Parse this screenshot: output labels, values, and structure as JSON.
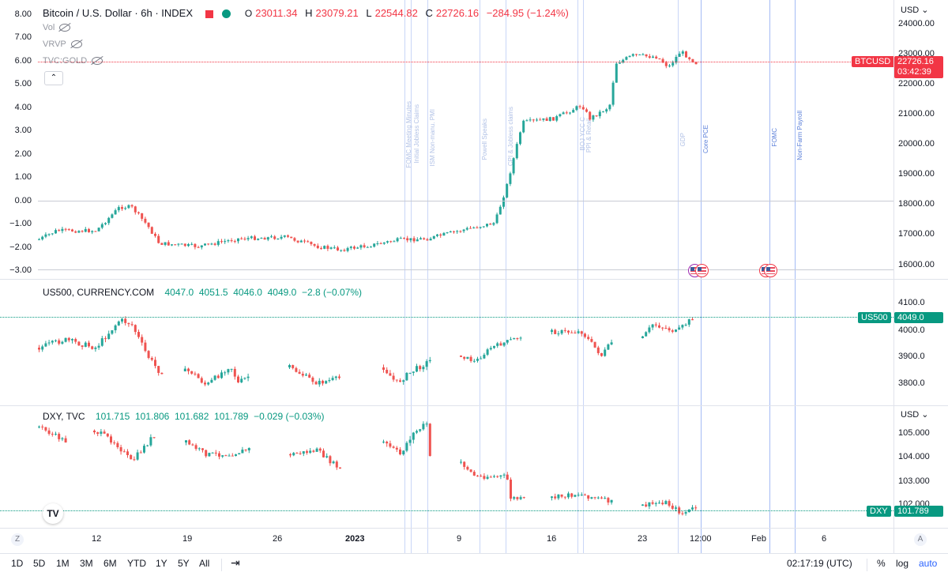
{
  "main": {
    "title": "Bitcoin / U.S. Dollar · 6h · INDEX",
    "ohlc": {
      "o_label": "O",
      "o": "23011.34",
      "h_label": "H",
      "h": "23079.21",
      "l_label": "L",
      "l": "22544.82",
      "c_label": "C",
      "c": "22726.16",
      "change": "−284.95 (−1.24%)"
    },
    "indicators": [
      {
        "name": "Vol"
      },
      {
        "name": "VRVP"
      },
      {
        "name": "TVC:GOLD"
      }
    ],
    "left_axis": [
      "8.00",
      "7.00",
      "6.00",
      "5.00",
      "4.00",
      "3.00",
      "2.00",
      "1.00",
      "0.00",
      "−1.00",
      "−2.00",
      "−3.00"
    ],
    "right_axis": [
      "24000.00",
      "23000.00",
      "22000.00",
      "21000.00",
      "20000.00",
      "19000.00",
      "18000.00",
      "17000.00",
      "16000.00"
    ],
    "price_tag": {
      "symbol": "BTCUSD",
      "price": "22726.16",
      "countdown": "03:42:39"
    },
    "currency": "USD"
  },
  "us500": {
    "title": "US500, CURRENCY.COM",
    "values": "4047.0  4051.5  4046.0  4049.0  −2.8 (−0.07%)",
    "right_axis": [
      "4100.0",
      "4000.0",
      "3900.0",
      "3800.0"
    ],
    "price_tag": {
      "symbol": "US500",
      "price": "4049.0"
    }
  },
  "dxy": {
    "title": "DXY, TVC",
    "values": "101.715  101.806  101.682  101.789  −0.029 (−0.03%)",
    "right_axis": [
      "105.000",
      "104.000",
      "103.000",
      "102.000"
    ],
    "price_tag": {
      "symbol": "DXY",
      "price": "101.789"
    },
    "currency": "USD"
  },
  "events": [
    "FOMC Meeting Minutes",
    "Initial Jobless Claims",
    "ISM Non-manu. PMI",
    "Powell Speaks",
    "CPI & Jobless claims",
    "BOJ YCC C",
    "PPI & Retail",
    "GDP",
    "Core PCE",
    "FOMC",
    "Non-Farm Payroll"
  ],
  "x_axis": [
    "12",
    "19",
    "26",
    "2023",
    "9",
    "16",
    "23",
    "12:00",
    "Feb",
    "6"
  ],
  "toolbar": {
    "ranges": [
      "1D",
      "5D",
      "1M",
      "3M",
      "6M",
      "YTD",
      "1Y",
      "5Y",
      "All"
    ],
    "time": "02:17:19 (UTC)",
    "percent": "%",
    "log": "log",
    "auto": "auto",
    "z": "Z",
    "a": "A"
  },
  "colors": {
    "up": "#26a69a",
    "down": "#ef5350",
    "event": "#b2c5f3"
  }
}
